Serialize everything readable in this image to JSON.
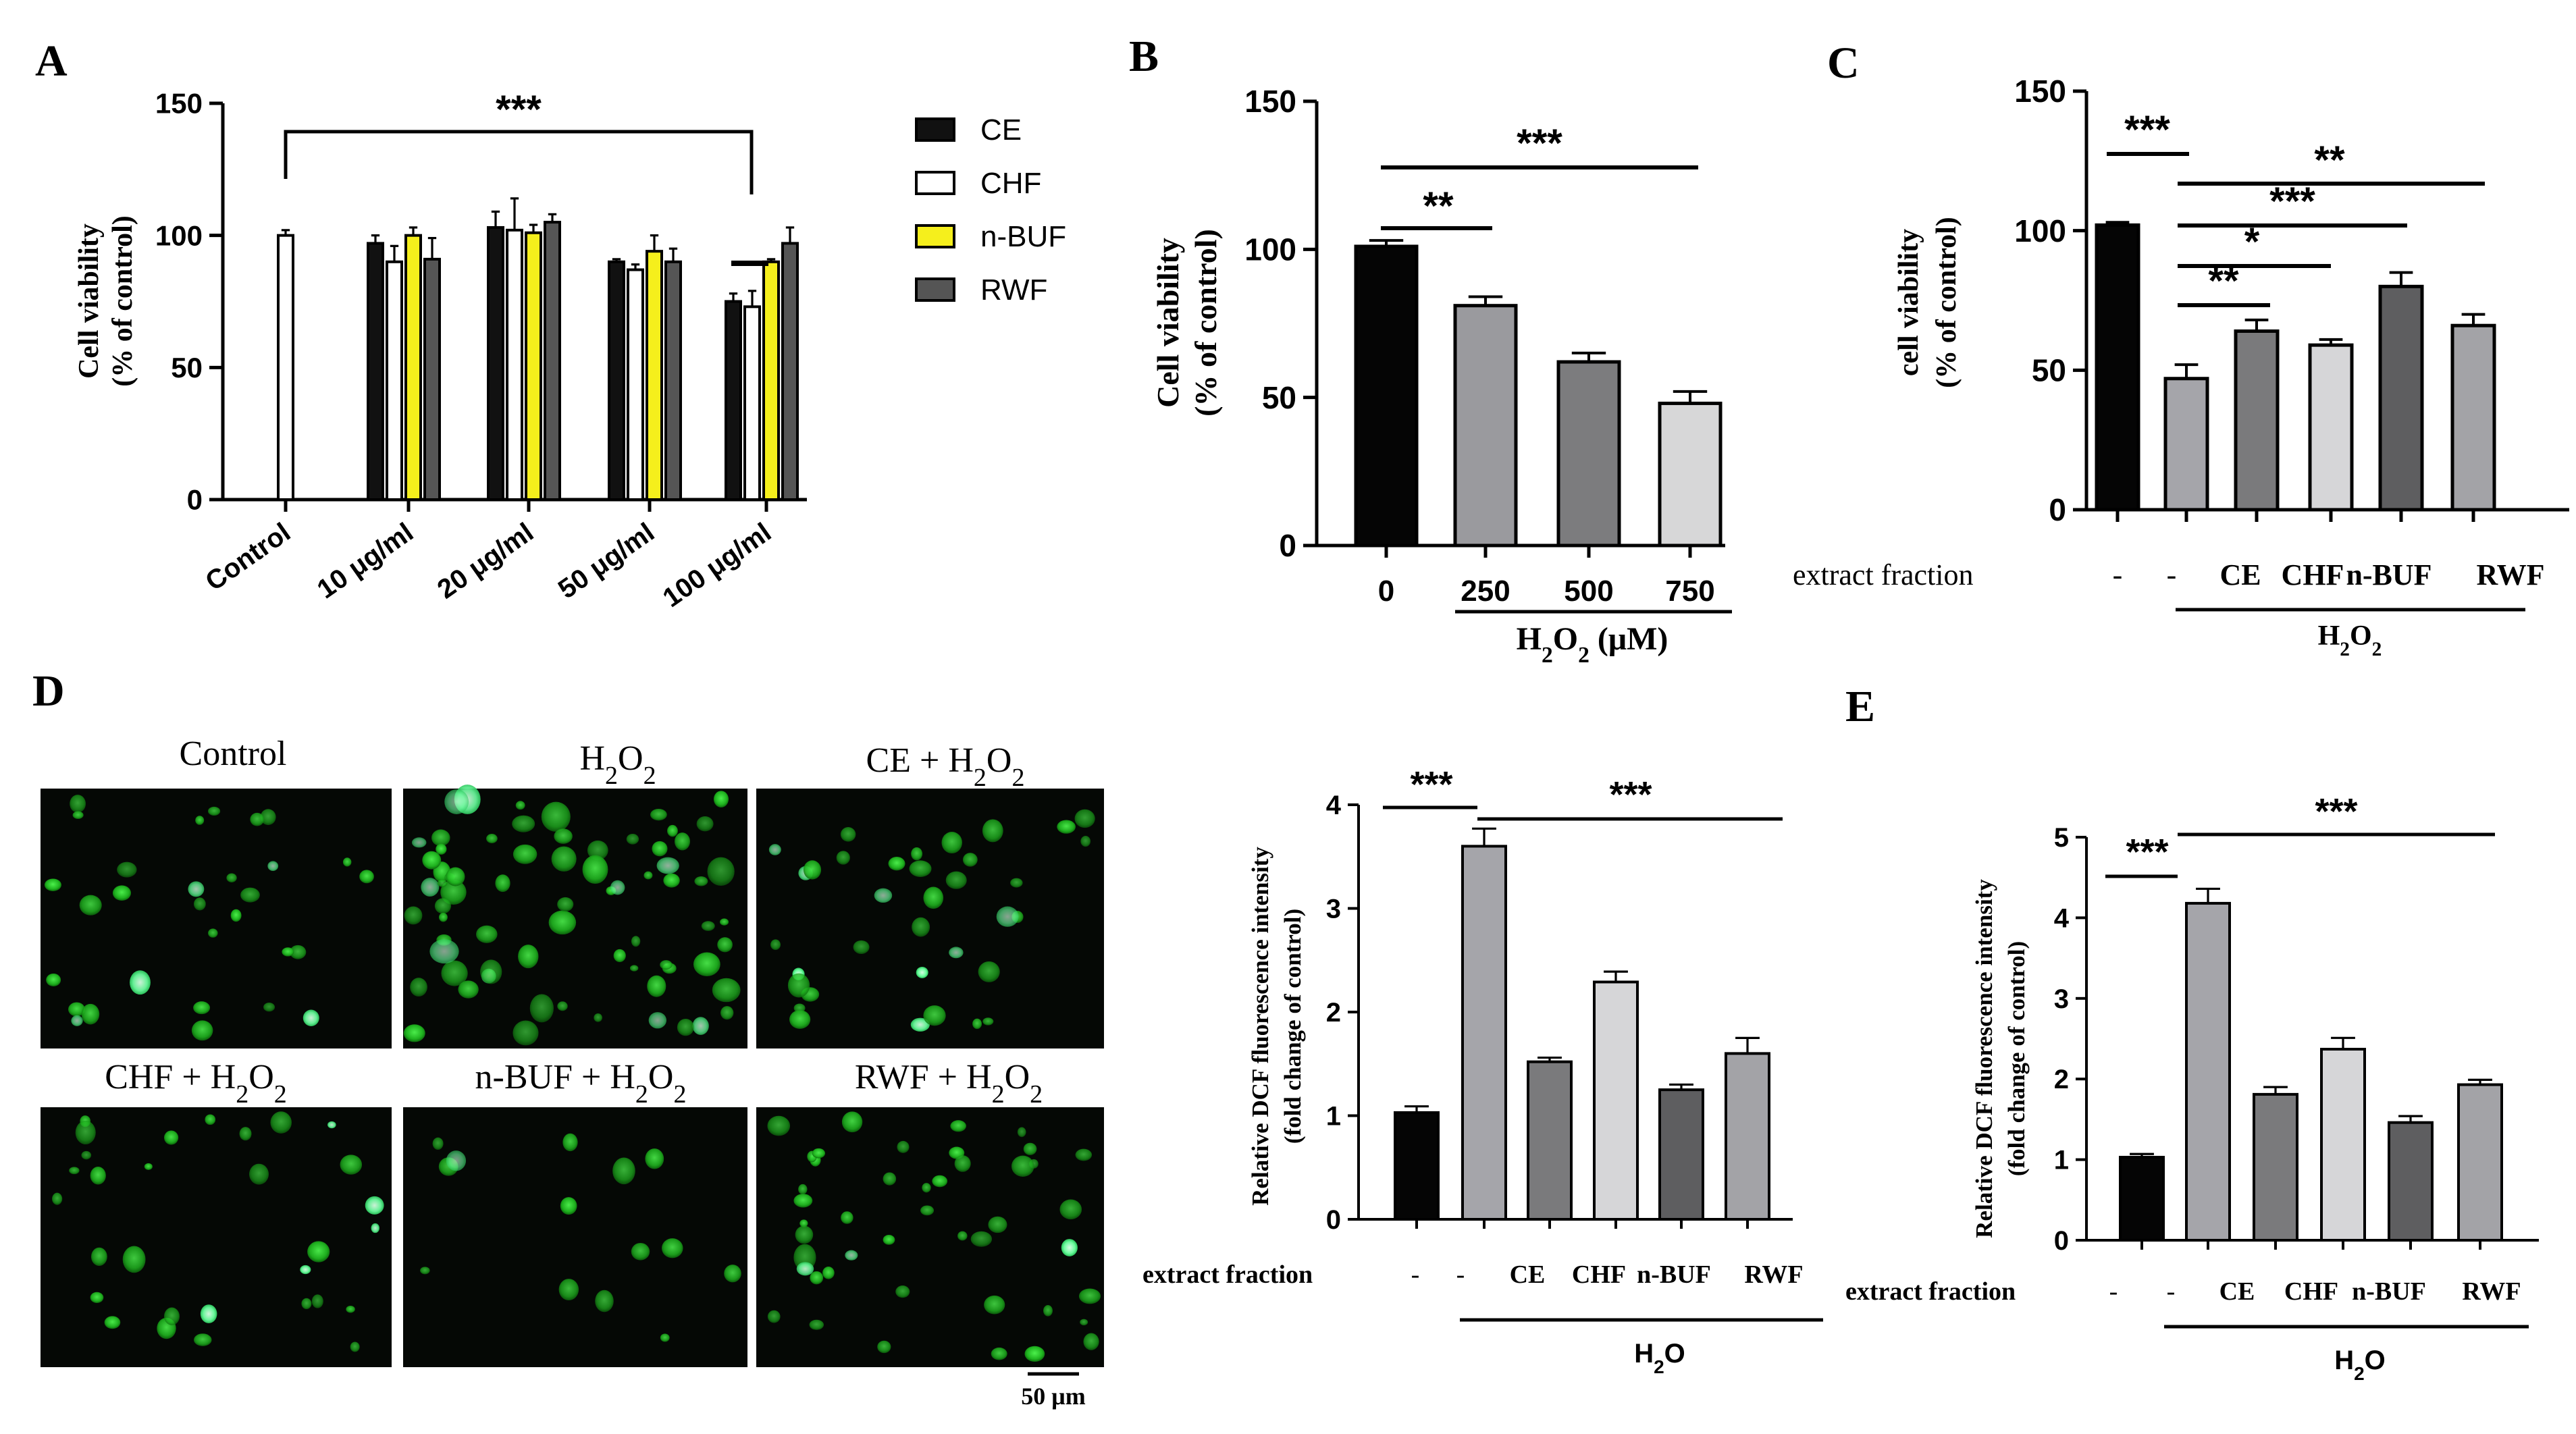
{
  "panel_labels": [
    "A",
    "B",
    "C",
    "D",
    "E"
  ],
  "chart_data": [
    {
      "panel": "A",
      "type": "bar",
      "ylabel_line1": "Cell viability",
      "ylabel_line2": "(% of control)",
      "ylim": [
        0,
        150
      ],
      "yticks": [
        "0",
        "50",
        "100",
        "150"
      ],
      "groups": [
        "Control",
        "10 μg/ml",
        "20 μg/ml",
        "50 μg/ml",
        "100 μg/ml"
      ],
      "legend": [
        "CE",
        "CHF",
        "n-BUF",
        "RWF"
      ],
      "legend_position": "right",
      "series_colors": [
        "#111111",
        "#ffffff",
        "#f5ef1c",
        "#555555"
      ],
      "control": {
        "value": 100,
        "err": 2
      },
      "series": [
        {
          "name": "CE",
          "values": [
            97,
            103,
            90,
            75
          ],
          "err": [
            3,
            6,
            1,
            3
          ]
        },
        {
          "name": "CHF",
          "values": [
            90,
            102,
            87,
            73
          ],
          "err": [
            6,
            12,
            2,
            6
          ]
        },
        {
          "name": "n-BUF",
          "values": [
            100,
            101,
            94,
            90
          ],
          "err": [
            3,
            3,
            6,
            1
          ]
        },
        {
          "name": "RWF",
          "values": [
            91,
            105,
            90,
            97
          ],
          "err": [
            8,
            3,
            5,
            6
          ]
        }
      ],
      "annotations": [
        "***"
      ]
    },
    {
      "panel": "B",
      "type": "bar",
      "ylabel_line1": "Cell viability",
      "ylabel_line2": "(% of control)",
      "ylim": [
        0,
        150
      ],
      "yticks": [
        "0",
        "50",
        "100",
        "150"
      ],
      "categories": [
        "0",
        "250",
        "500",
        "750"
      ],
      "values": [
        101,
        81,
        62,
        48
      ],
      "err": [
        2,
        3,
        3,
        4
      ],
      "colors": [
        "#050505",
        "#9a9a9e",
        "#7c7c7e",
        "#d7d7d8"
      ],
      "xlabel_main": "H",
      "xlabel_sub1": "2",
      "xlabel_mid": "O",
      "xlabel_sub2": "2",
      "xlabel_unit": " (μM)",
      "annotations": [
        "**",
        "***"
      ]
    },
    {
      "panel": "C",
      "type": "bar",
      "ylabel_line1": "cell viability",
      "ylabel_line2": "(% of control)",
      "ylim": [
        0,
        150
      ],
      "yticks": [
        "0",
        "50",
        "100",
        "150"
      ],
      "row_label": "extract fraction",
      "categories": [
        "-",
        "-",
        "CE",
        "CHF",
        "n-BUF",
        "RWF"
      ],
      "values": [
        102,
        47,
        64,
        59,
        80,
        66
      ],
      "err": [
        1,
        5,
        4,
        2,
        5,
        4
      ],
      "colors": [
        "#050505",
        "#a5a5aa",
        "#7a7a7c",
        "#d6d6d8",
        "#5e5e60",
        "#a3a3a7"
      ],
      "treatment_main": "H",
      "treatment_sub1": "2",
      "treatment_mid": "O",
      "treatment_sub2": "2",
      "annotations": [
        "***",
        "**",
        "***",
        "*",
        "**"
      ]
    },
    {
      "panel": "D",
      "type": "bar",
      "ylabel_line1": "Relative DCF fluorescence intensity",
      "ylabel_line2": "(fold change of control)",
      "ylim": [
        0,
        4
      ],
      "yticks": [
        "0",
        "1",
        "2",
        "3",
        "4"
      ],
      "row_label": "extract fraction",
      "categories": [
        "-",
        "-",
        "CE",
        "CHF",
        "n-BUF",
        "RWF"
      ],
      "values": [
        1.03,
        3.6,
        1.52,
        2.29,
        1.25,
        1.6
      ],
      "err": [
        0.06,
        0.17,
        0.04,
        0.1,
        0.05,
        0.15
      ],
      "colors": [
        "#050505",
        "#a5a5aa",
        "#7a7a7c",
        "#d6d6d8",
        "#5e5e60",
        "#a3a3a7"
      ],
      "treatment_main": "H",
      "treatment_sub": "2",
      "treatment_mid": "O",
      "annotations": [
        "***",
        "***"
      ]
    },
    {
      "panel": "E",
      "type": "bar",
      "ylabel_line1": "Relative DCF fluorescence intensity",
      "ylabel_line2": "(fold change of control)",
      "ylim": [
        0,
        5
      ],
      "yticks": [
        "0",
        "1",
        "2",
        "3",
        "4",
        "5"
      ],
      "row_label": "extract fraction",
      "categories": [
        "-",
        "-",
        "CE",
        "CHF",
        "n-BUF",
        "RWF"
      ],
      "values": [
        1.03,
        4.18,
        1.81,
        2.37,
        1.46,
        1.93
      ],
      "err": [
        0.04,
        0.18,
        0.09,
        0.14,
        0.08,
        0.06
      ],
      "colors": [
        "#050505",
        "#a5a5aa",
        "#7a7a7c",
        "#d6d6d8",
        "#5e5e60",
        "#a3a3a7"
      ],
      "treatment_main": "H",
      "treatment_sub": "2",
      "treatment_mid": "O",
      "annotations": [
        "***",
        "***"
      ]
    }
  ],
  "micrographs": {
    "labels": [
      {
        "prefix": "Control",
        "h": "",
        "s1": "",
        "o": "",
        "s2": ""
      },
      {
        "prefix": "",
        "h": "H",
        "s1": "2",
        "o": "O",
        "s2": "2"
      },
      {
        "prefix": "CE + ",
        "h": "H",
        "s1": "2",
        "o": "O",
        "s2": "2"
      },
      {
        "prefix": "CHF + ",
        "h": "H",
        "s1": "2",
        "o": "O",
        "s2": "2"
      },
      {
        "prefix": "n-BUF + ",
        "h": "H",
        "s1": "2",
        "o": "O",
        "s2": "2"
      },
      {
        "prefix": "RWF + ",
        "h": "H",
        "s1": "2",
        "o": "O",
        "s2": "2"
      }
    ],
    "scale_bar_label": "50 μm",
    "cell_color": "#2ed12e",
    "bright_cell_color": "#7dff9a"
  }
}
